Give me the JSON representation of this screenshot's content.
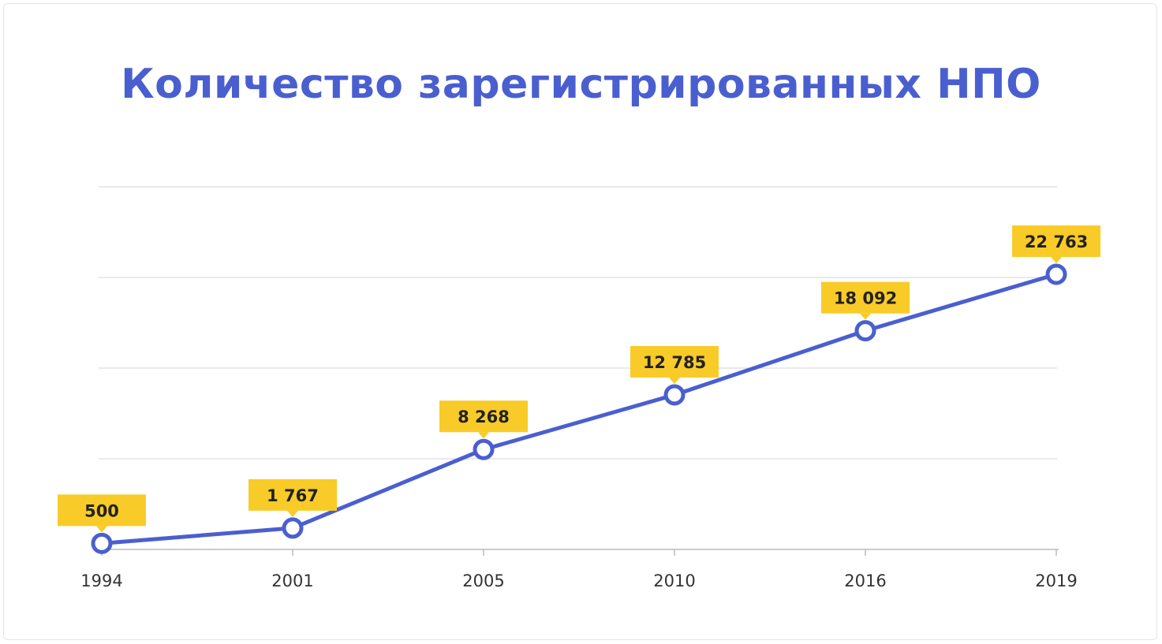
{
  "chart_data": {
    "type": "line",
    "title": "Количество зарегистрированных НПО",
    "categories": [
      "1994",
      "2001",
      "2005",
      "2010",
      "2016",
      "2019"
    ],
    "values": [
      500,
      1767,
      8268,
      12785,
      18092,
      22763
    ],
    "data_labels": [
      "500",
      "1 767",
      "8 268",
      "12 785",
      "18 092",
      "22 763"
    ],
    "ylim": [
      0,
      30000
    ],
    "grid": true,
    "colors": {
      "line": "#4a5fcf",
      "label_bg": "#f9cb28",
      "grid": "#dddddd",
      "axis": "#bbbbbb"
    }
  }
}
